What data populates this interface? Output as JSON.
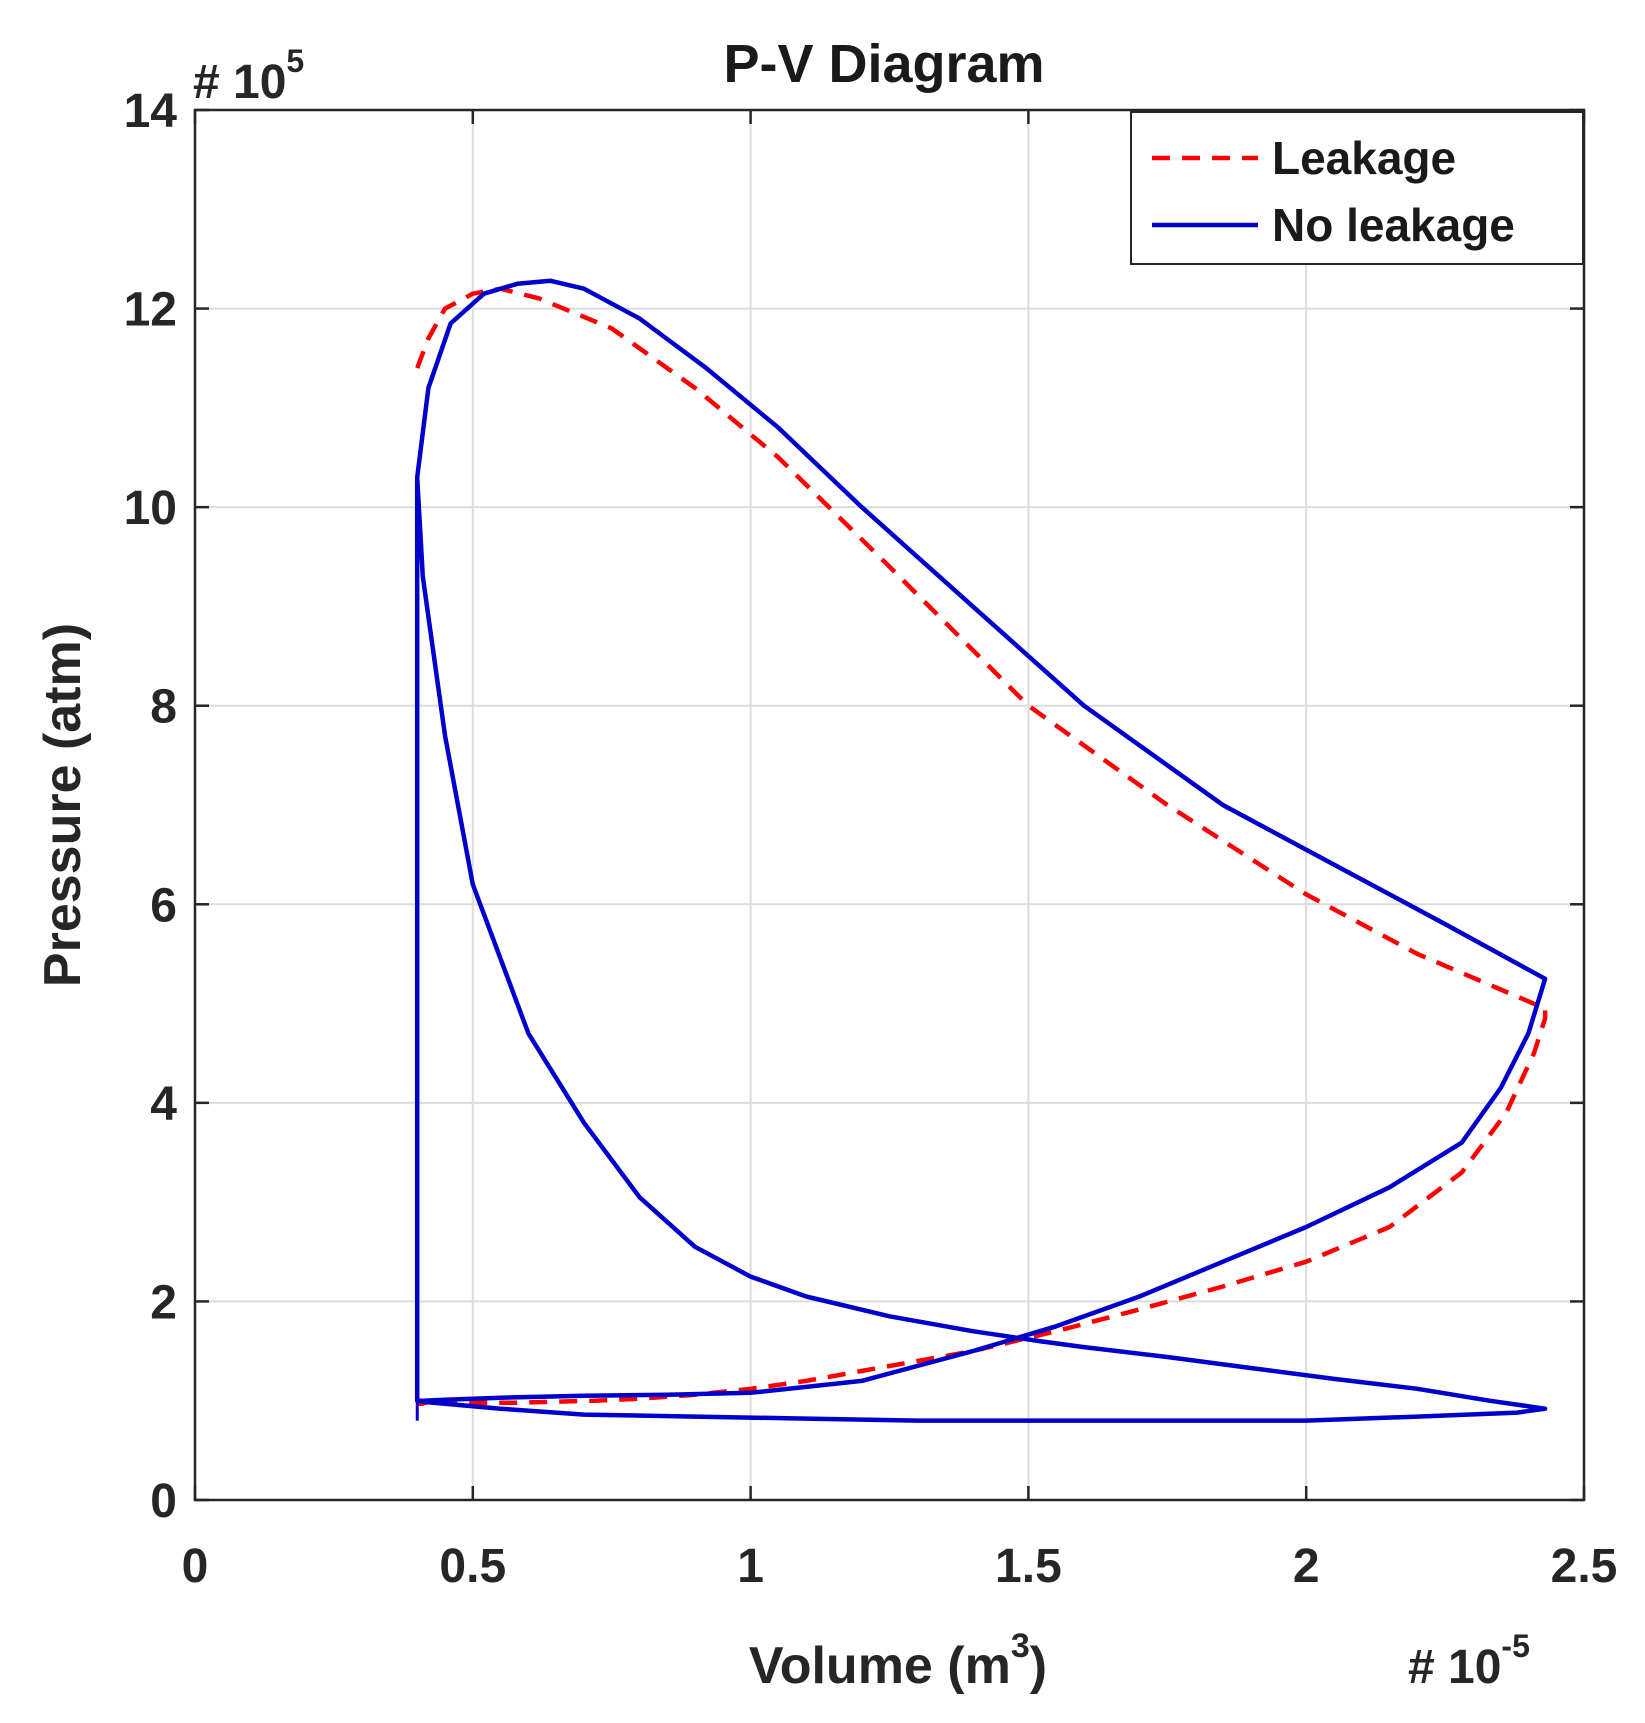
{
  "chart_data": {
    "type": "line",
    "title": "P-V Diagram",
    "xlabel": "Volume (m",
    "xlabel_sup": "3",
    "xlabel_close": ")",
    "ylabel": "Pressure (atm)",
    "x_exponent": {
      "base": "# 10",
      "power": "-5"
    },
    "y_exponent": {
      "base": "# 10",
      "power": "5"
    },
    "xlim": [
      0,
      2.5
    ],
    "ylim": [
      0,
      14
    ],
    "xticks": [
      0,
      0.5,
      1,
      1.5,
      2,
      2.5
    ],
    "xtick_labels": [
      "0",
      "0.5",
      "1",
      "1.5",
      "2",
      "2.5"
    ],
    "yticks": [
      0,
      2,
      4,
      6,
      8,
      10,
      12,
      14
    ],
    "ytick_labels": [
      "0",
      "2",
      "4",
      "6",
      "8",
      "10",
      "12",
      "14"
    ],
    "grid": true,
    "legend_position": "top-right",
    "series": [
      {
        "name": "Leakage",
        "color": "#ff0000",
        "style": "dashed",
        "x": [
          0.4,
          0.42,
          0.45,
          0.5,
          0.55,
          0.62,
          0.75,
          0.9,
          1.05,
          1.25,
          1.5,
          1.75,
          2.0,
          2.2,
          2.43,
          2.43,
          2.41,
          2.36,
          2.28,
          2.15,
          2.0,
          1.85,
          1.7,
          1.55,
          1.4,
          1.25,
          1.1,
          1.0,
          0.9,
          0.8,
          0.72,
          0.65,
          0.58,
          0.52,
          0.48,
          0.45,
          0.43,
          0.42,
          0.41,
          0.41,
          0.4
        ],
        "y": [
          11.4,
          11.7,
          12.0,
          12.15,
          12.2,
          12.1,
          11.8,
          11.2,
          10.5,
          9.4,
          8.0,
          7.0,
          6.1,
          5.5,
          4.95,
          4.85,
          4.5,
          3.9,
          3.3,
          2.75,
          2.4,
          2.15,
          1.92,
          1.7,
          1.5,
          1.35,
          1.2,
          1.12,
          1.06,
          1.02,
          1.0,
          0.99,
          0.98,
          0.98,
          0.98,
          0.98,
          0.98,
          0.98,
          0.98,
          0.97,
          0.97
        ]
      },
      {
        "name": "No leakage",
        "color": "#0000cc",
        "style": "solid",
        "x": [
          0.4,
          0.42,
          0.46,
          0.52,
          0.58,
          0.64,
          0.7,
          0.8,
          0.92,
          1.05,
          1.2,
          1.4,
          1.6,
          1.85,
          2.05,
          2.25,
          2.43,
          2.4,
          2.35,
          2.28,
          2.15,
          2.0,
          1.85,
          1.7,
          1.55,
          1.4,
          1.2,
          1.0,
          0.85,
          0.7,
          0.55,
          0.45,
          0.41,
          0.4,
          0.4,
          0.41,
          0.45,
          0.5,
          0.6,
          0.7,
          0.8,
          0.9,
          1.0,
          1.1,
          1.25,
          1.4,
          1.52,
          1.6,
          1.75,
          1.9,
          2.05,
          2.2,
          2.33,
          2.43,
          2.38,
          2.2,
          2.0,
          1.8,
          1.6,
          1.5,
          1.3,
          1.1,
          0.9,
          0.7,
          0.55,
          0.45,
          0.41,
          0.4
        ],
        "y": [
          10.3,
          11.2,
          11.85,
          12.15,
          12.25,
          12.28,
          12.2,
          11.9,
          11.4,
          10.8,
          10.0,
          9.0,
          8.0,
          7.0,
          6.4,
          5.8,
          5.25,
          4.7,
          4.15,
          3.6,
          3.15,
          2.75,
          2.4,
          2.05,
          1.75,
          1.5,
          1.2,
          1.08,
          1.06,
          1.05,
          1.03,
          1.01,
          1.0,
          1.0,
          10.3,
          9.3,
          7.7,
          6.2,
          4.7,
          3.8,
          3.05,
          2.55,
          2.25,
          2.05,
          1.85,
          1.7,
          1.6,
          1.54,
          1.44,
          1.33,
          1.22,
          1.12,
          1.0,
          0.92,
          0.88,
          0.84,
          0.8,
          0.8,
          0.8,
          0.8,
          0.8,
          0.82,
          0.84,
          0.86,
          0.92,
          0.97,
          0.99,
          1.0
        ]
      }
    ]
  }
}
